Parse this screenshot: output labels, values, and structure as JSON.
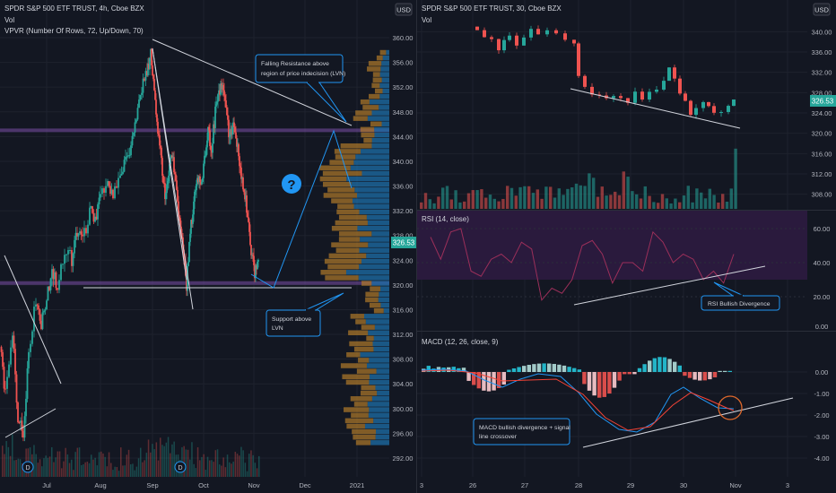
{
  "left_chart": {
    "header": {
      "title": "SPDR S&P 500 ETF TRUST, 4h, Cboe BZX",
      "vol": "Vol",
      "vpvr": "VPVR (Number Of Rows, 72, Up/Down, 70)"
    },
    "currency_badge": "USD",
    "price_axis": {
      "ticks": [
        360,
        356,
        352,
        348,
        344,
        340,
        336,
        332,
        328,
        324,
        320,
        316,
        312,
        308,
        304,
        300,
        296,
        292
      ],
      "tick_labels": [
        "360.00",
        "356.00",
        "352.00",
        "348.00",
        "344.00",
        "340.00",
        "336.00",
        "332.00",
        "328.00",
        "324.00",
        "320.00",
        "316.00",
        "312.00",
        "308.00",
        "304.00",
        "300.00",
        "296.00",
        "292.00"
      ],
      "current": "326.53"
    },
    "time_axis": [
      "Jul",
      "Aug",
      "Sep",
      "Oct",
      "Nov",
      "Dec",
      "2021"
    ],
    "annotations": {
      "resistance": "Falling Resistance above region of price indecision (LVN)",
      "support": "Support above LVN",
      "question": "?",
      "dividend_marker": "D"
    }
  },
  "right_top": {
    "header": {
      "title": "SPDR S&P 500 ETF TRUST, 30, Cboe BZX",
      "vol": "Vol"
    },
    "currency_badge": "USD",
    "price_axis": [
      "340.00",
      "336.00",
      "332.00",
      "328.00",
      "324.00",
      "320.00",
      "316.00",
      "312.00",
      "308.00"
    ],
    "current": "326.53"
  },
  "rsi": {
    "header": "RSI (14, close)",
    "axis": [
      "60.00",
      "40.00",
      "20.00",
      "0.00"
    ],
    "annotation": "RSI Bullish Divergence"
  },
  "macd": {
    "header": "MACD (12, 26, close, 9)",
    "axis": [
      "0.00",
      "-1.00",
      "-2.00",
      "-3.00",
      "-4.00"
    ],
    "annotation": "MACD bullish divergence + signal line crossover"
  },
  "right_time_axis": [
    "3",
    "26",
    "27",
    "28",
    "29",
    "30",
    "Nov",
    "3"
  ],
  "colors": {
    "background": "#131722",
    "up": "#26a69a",
    "down": "#ef5350",
    "trendline": "#d1d4dc",
    "band": "#7b4fa8",
    "callout_border": "#2196f3",
    "vp_up": "#1e6fa8",
    "vp_down": "#b07a2a",
    "rsi_line": "#9c2f5a",
    "macd_line": "#2196f3",
    "signal_line": "#f44336",
    "macd_circle": "#e0692b"
  },
  "chart_data": [
    {
      "type": "candlestick",
      "title": "SPDR S&P 500 ETF TRUST, 4h, Cboe BZX",
      "xlabel": "",
      "ylabel": "",
      "x_ticks": [
        "Jul",
        "Aug",
        "Sep",
        "Oct",
        "Nov",
        "Dec",
        "2021"
      ],
      "ylim": [
        290,
        362
      ],
      "price_path": [
        {
          "x": "Jun 22",
          "y": 310
        },
        {
          "x": "Jun 26",
          "y": 301
        },
        {
          "x": "Jul 1",
          "y": 310
        },
        {
          "x": "Jul 7",
          "y": 316
        },
        {
          "x": "Jul 14",
          "y": 320
        },
        {
          "x": "Jul 22",
          "y": 326
        },
        {
          "x": "Jul 31",
          "y": 327
        },
        {
          "x": "Aug 10",
          "y": 334
        },
        {
          "x": "Aug 20",
          "y": 339
        },
        {
          "x": "Aug 28",
          "y": 350
        },
        {
          "x": "Sep 2",
          "y": 357
        },
        {
          "x": "Sep 8",
          "y": 334
        },
        {
          "x": "Sep 14",
          "y": 341
        },
        {
          "x": "Sep 23",
          "y": 320
        },
        {
          "x": "Oct 1",
          "y": 334
        },
        {
          "x": "Oct 12",
          "y": 352
        },
        {
          "x": "Oct 19",
          "y": 344
        },
        {
          "x": "Oct 28",
          "y": 326
        },
        {
          "x": "Oct 30",
          "y": 327
        },
        {
          "x": "Nov 2",
          "y": 330
        }
      ],
      "current_price": 326.53,
      "support_level": 320,
      "resistance_trendline": [
        {
          "x": "Sep 2",
          "y": 359
        },
        {
          "x": "Dec 10",
          "y": 348
        }
      ]
    },
    {
      "type": "candlestick",
      "title": "SPDR S&P 500 ETF TRUST, 30, Cboe BZX",
      "x_ticks": [
        "3",
        "26",
        "27",
        "28",
        "29",
        "30",
        "Nov",
        "3"
      ],
      "ylim": [
        306,
        342
      ],
      "current_price": 326.53
    },
    {
      "type": "line",
      "title": "RSI (14, close)",
      "ylim": [
        0,
        70
      ],
      "series": [
        {
          "name": "RSI",
          "values": [
            55,
            42,
            58,
            60,
            35,
            32,
            42,
            45,
            40,
            52,
            48,
            18,
            25,
            22,
            30,
            50,
            53,
            45,
            28,
            40,
            40,
            35,
            58,
            52,
            40,
            45,
            42,
            30,
            35,
            28,
            45
          ]
        }
      ]
    },
    {
      "type": "bar",
      "title": "MACD (12, 26, close, 9)",
      "ylim": [
        -4.5,
        0.6
      ]
    }
  ]
}
